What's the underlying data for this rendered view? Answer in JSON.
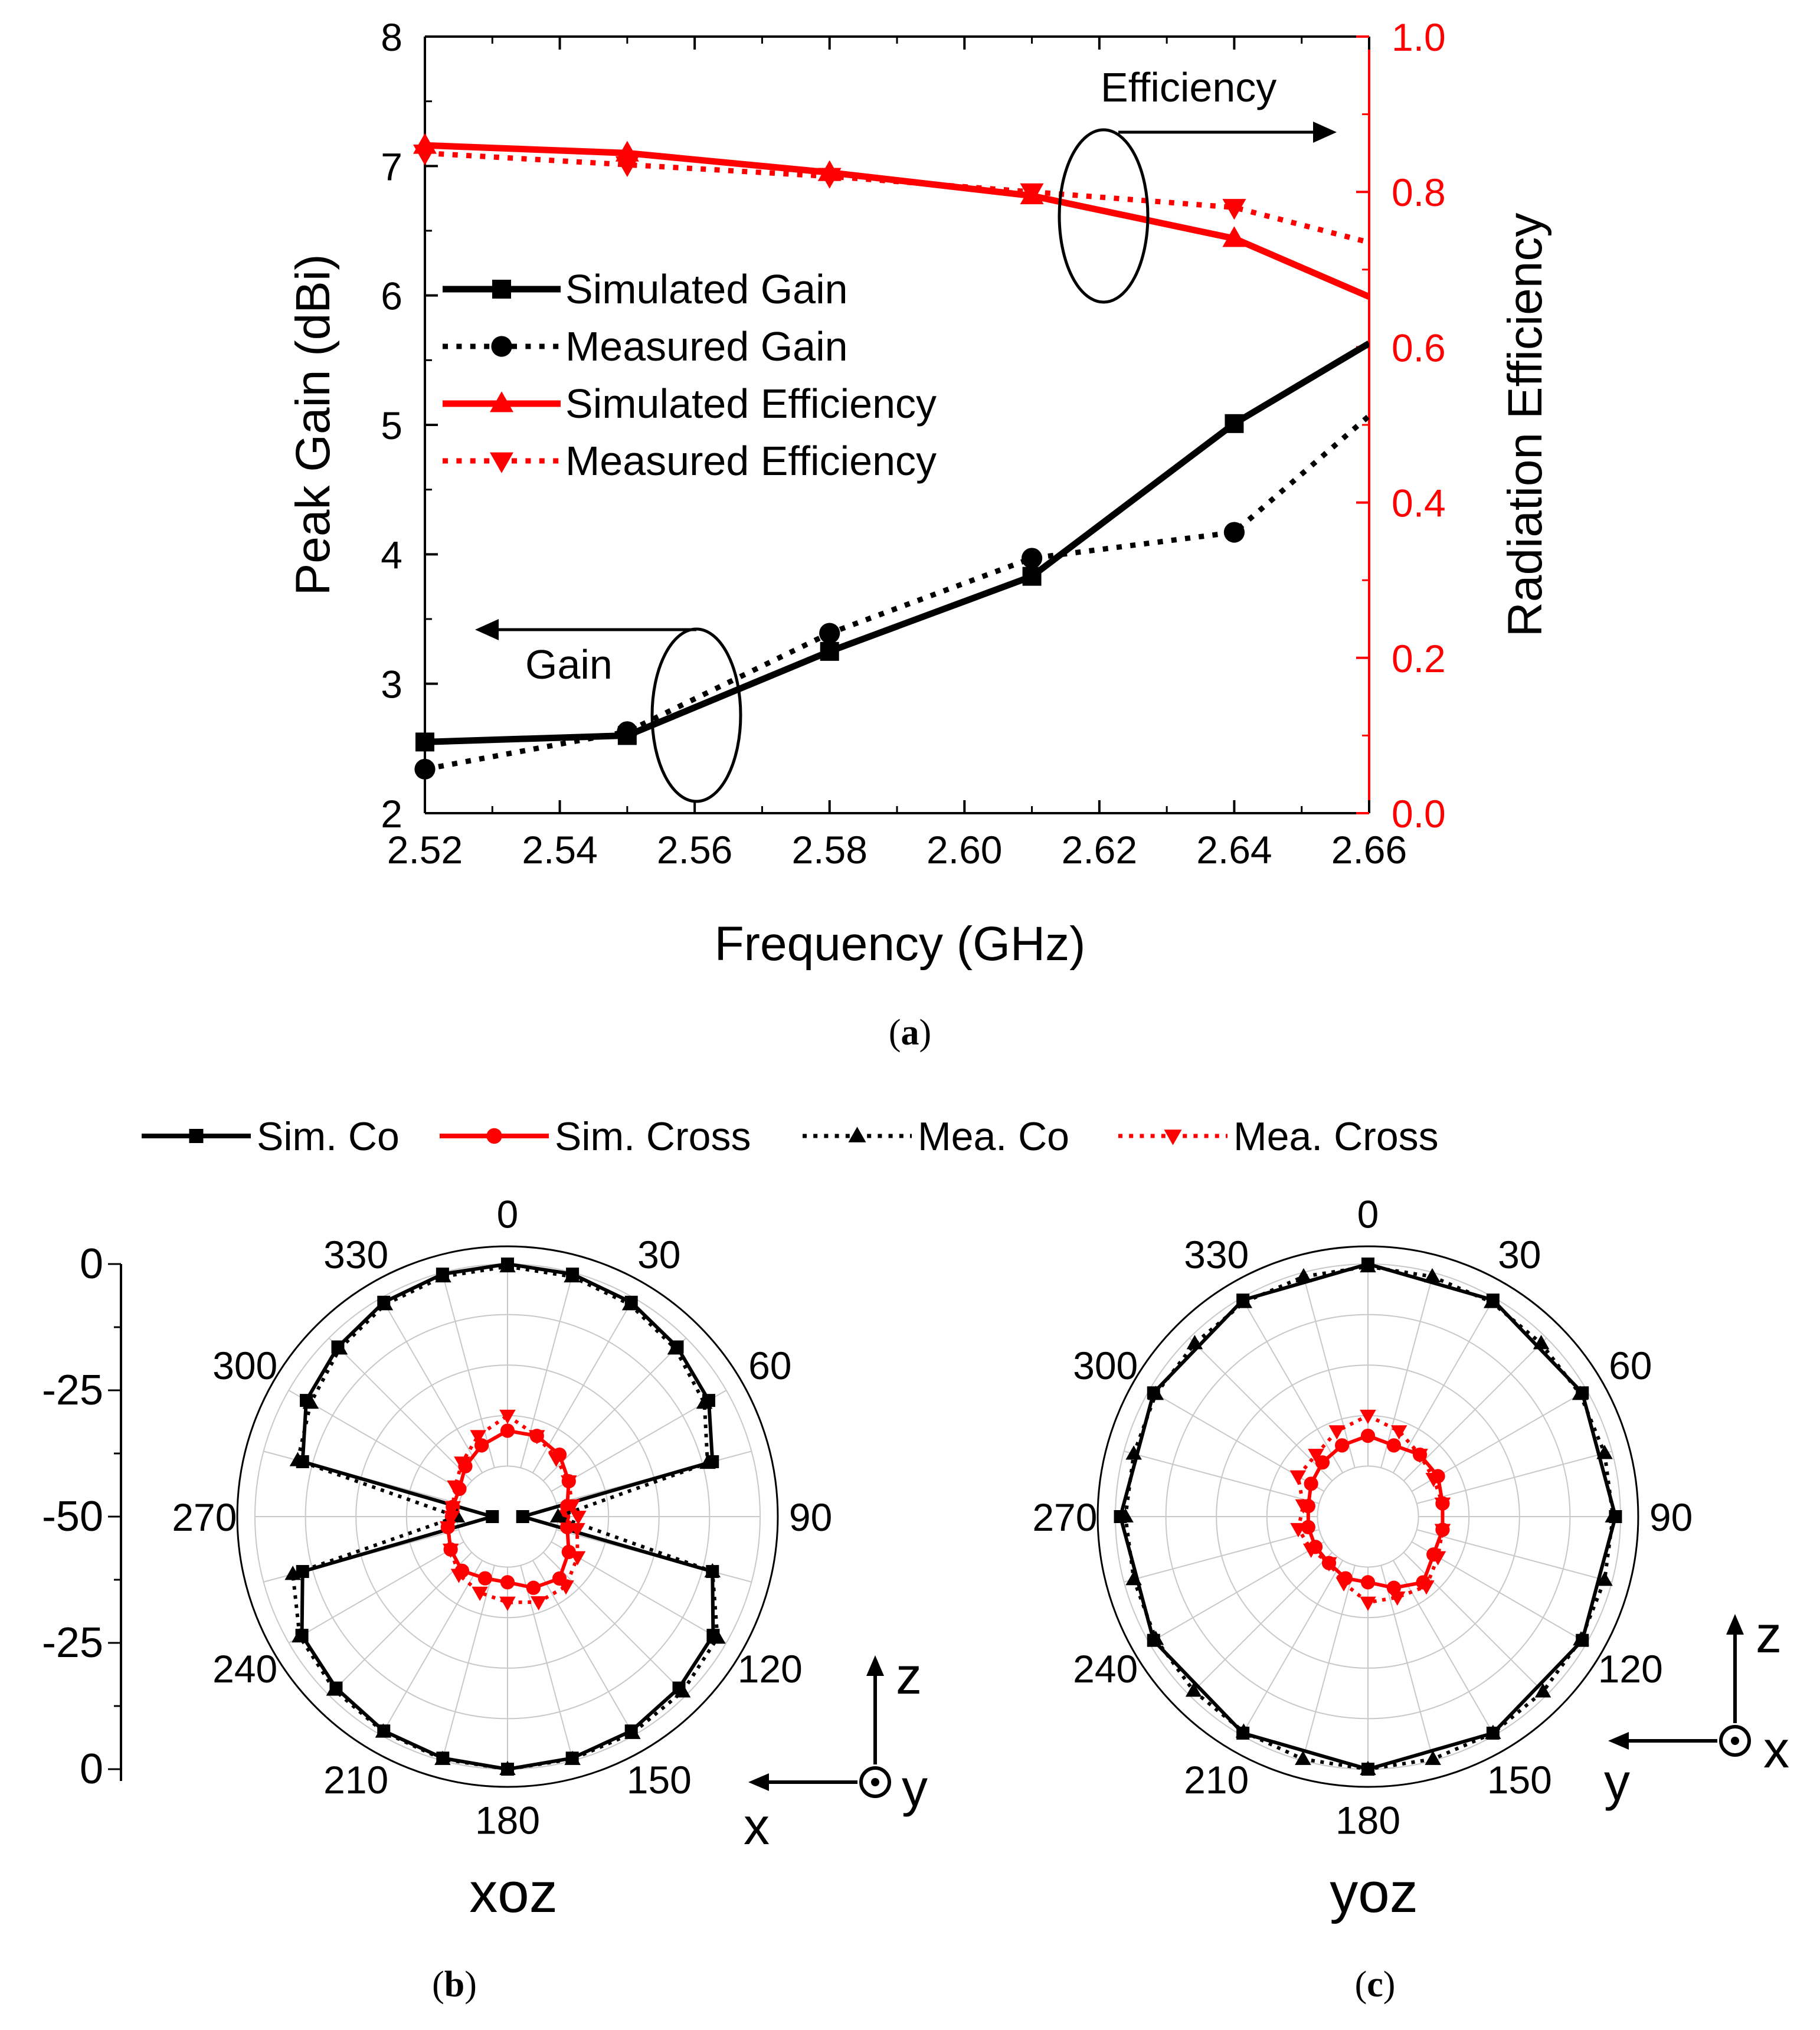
{
  "colors": {
    "black": "#000000",
    "red": "#ff0000",
    "grid": "#c8c8c8"
  },
  "panels": {
    "a": {
      "caption_open": "(",
      "caption_letter": "a",
      "caption_close": ")"
    },
    "b": {
      "caption_open": "(",
      "caption_letter": "b",
      "caption_close": ")"
    },
    "c": {
      "caption_open": "(",
      "caption_letter": "c",
      "caption_close": ")"
    }
  },
  "chart_data": [
    {
      "id": "a",
      "type": "line",
      "xlabel": "Frequency (GHz)",
      "ylabel": "Peak Gain (dBi)",
      "y2label": "Radiation Efficiency",
      "xlim": [
        2.52,
        2.66
      ],
      "ylim": [
        2,
        8
      ],
      "y2lim": [
        0.0,
        1.0
      ],
      "xticks": [
        "2.52",
        "2.54",
        "2.56",
        "2.58",
        "2.60",
        "2.62",
        "2.64",
        "2.66"
      ],
      "yticks": [
        "2",
        "3",
        "4",
        "5",
        "6",
        "7",
        "8"
      ],
      "y2ticks": [
        "0.0",
        "0.2",
        "0.4",
        "0.6",
        "0.8",
        "1.0"
      ],
      "legend_position": "center-left",
      "series": [
        {
          "name": "Simulated  Gain",
          "axis": "left",
          "color": "#000000",
          "style": "solid",
          "marker": "square",
          "x": [
            2.52,
            2.55,
            2.58,
            2.61,
            2.64,
            2.66
          ],
          "y": [
            2.55,
            2.6,
            3.25,
            3.83,
            5.01,
            5.63
          ]
        },
        {
          "name": "Measured Gain",
          "axis": "left",
          "color": "#000000",
          "style": "dotted",
          "marker": "circle",
          "x": [
            2.52,
            2.55,
            2.58,
            2.61,
            2.64,
            2.66
          ],
          "y": [
            2.34,
            2.63,
            3.39,
            3.97,
            4.17,
            5.07
          ]
        },
        {
          "name": "Simulated Efficiency",
          "axis": "right",
          "color": "#ff0000",
          "style": "solid",
          "marker": "triangle-up",
          "x": [
            2.52,
            2.55,
            2.58,
            2.61,
            2.64,
            2.66
          ],
          "y": [
            0.86,
            0.85,
            0.825,
            0.795,
            0.74,
            0.665
          ]
        },
        {
          "name": "Measured Efficiency",
          "axis": "right",
          "color": "#ff0000",
          "style": "dotted",
          "marker": "triangle-down",
          "x": [
            2.52,
            2.55,
            2.58,
            2.61,
            2.64,
            2.66
          ],
          "y": [
            0.85,
            0.835,
            0.82,
            0.8,
            0.78,
            0.735
          ]
        }
      ],
      "annotations": {
        "efficiency_label": "Efficiency",
        "gain_label": "Gain"
      }
    },
    {
      "id": "b",
      "type": "polar",
      "plane_label": "xoz",
      "radial_ticks": [
        "0",
        "-25",
        "-50",
        "-25",
        "0"
      ],
      "angle_labels": [
        "0",
        "30",
        "60",
        "90",
        "120",
        "150",
        "180",
        "210",
        "240",
        "270",
        "300",
        "330"
      ],
      "r_range_db": [
        -50,
        0
      ],
      "axis_labels": {
        "up": "z",
        "left": "x",
        "out": "y"
      },
      "series": [
        {
          "name": "Sim. Co",
          "color": "#000000",
          "style": "solid",
          "marker": "square",
          "angles": [
            0,
            15,
            30,
            45,
            60,
            75,
            90,
            105,
            120,
            135,
            150,
            165,
            180,
            195,
            210,
            225,
            240,
            255,
            270,
            285,
            300,
            315,
            330,
            345
          ],
          "values": [
            0,
            -0.3,
            -1,
            -2.5,
            -4,
            -8,
            -47,
            -8,
            -3,
            -2,
            -1,
            -0.5,
            0,
            -0.5,
            -1,
            -2,
            -3,
            -8,
            -47,
            -8,
            -4,
            -2.5,
            -1,
            -0.3
          ]
        },
        {
          "name": "Sim. Cross",
          "color": "#ff0000",
          "style": "solid",
          "marker": "circle",
          "angles": [
            0,
            20,
            40,
            60,
            80,
            90,
            100,
            120,
            140,
            160,
            180,
            200,
            220,
            240,
            260,
            270,
            280,
            300,
            320,
            340
          ],
          "values": [
            -33,
            -33,
            -34,
            -36,
            -38,
            -39,
            -38,
            -36,
            -34,
            -35,
            -37,
            -37,
            -36,
            -37,
            -38,
            -39,
            -39,
            -39,
            -37,
            -35
          ]
        },
        {
          "name": "Mea. Co",
          "color": "#000000",
          "style": "dotted",
          "marker": "triangle-up",
          "angles": [
            0,
            15,
            30,
            45,
            60,
            75,
            90,
            105,
            120,
            135,
            150,
            165,
            180,
            195,
            210,
            225,
            240,
            255,
            270,
            285,
            300,
            315,
            330,
            345
          ],
          "values": [
            -0.5,
            -0.8,
            -1.5,
            -3,
            -5,
            -9,
            -40,
            -8,
            -2,
            -1,
            -0.5,
            -0.3,
            0,
            -0.3,
            -0.8,
            -1.5,
            -2.5,
            -6,
            -40,
            -7,
            -5,
            -3,
            -1.5,
            -0.8
          ]
        },
        {
          "name": "Mea. Cross",
          "color": "#ff0000",
          "style": "dotted",
          "marker": "triangle-down",
          "angles": [
            0,
            20,
            40,
            60,
            80,
            90,
            100,
            120,
            140,
            160,
            180,
            200,
            220,
            240,
            260,
            270,
            280,
            300,
            320,
            340
          ],
          "values": [
            -30,
            -33,
            -35,
            -36,
            -37,
            -36,
            -36,
            -34,
            -32,
            -32,
            -33,
            -34,
            -35,
            -37,
            -38,
            -39,
            -39,
            -38,
            -36,
            -33
          ]
        }
      ]
    },
    {
      "id": "c",
      "type": "polar",
      "plane_label": "yoz",
      "angle_labels": [
        "0",
        "30",
        "60",
        "90",
        "120",
        "150",
        "180",
        "210",
        "240",
        "270",
        "300",
        "330"
      ],
      "r_range_db": [
        -50,
        0
      ],
      "axis_labels": {
        "up": "z",
        "left": "y",
        "out": "x"
      },
      "series": [
        {
          "name": "Sim. Co",
          "color": "#000000",
          "style": "solid",
          "marker": "square",
          "angles": [
            0,
            30,
            60,
            90,
            120,
            150,
            180,
            210,
            240,
            270,
            300,
            330
          ],
          "values": [
            0,
            -0.5,
            -1,
            -1,
            -1,
            -0.5,
            0,
            -0.5,
            -1,
            -1,
            -1,
            -0.5
          ]
        },
        {
          "name": "Sim. Cross",
          "color": "#ff0000",
          "style": "solid",
          "marker": "circle",
          "angles": [
            0,
            20,
            40,
            60,
            80,
            100,
            120,
            140,
            160,
            180,
            200,
            220,
            240,
            260,
            280,
            300,
            320,
            340
          ],
          "values": [
            -34,
            -35,
            -34,
            -34,
            -35,
            -35,
            -35,
            -33,
            -35,
            -37,
            -37,
            -38,
            -38,
            -38,
            -38,
            -37,
            -36,
            -35
          ]
        },
        {
          "name": "Mea. Co",
          "color": "#000000",
          "style": "dotted",
          "marker": "triangle-up",
          "angles": [
            0,
            15,
            30,
            45,
            60,
            75,
            90,
            105,
            120,
            135,
            150,
            165,
            180,
            195,
            210,
            225,
            240,
            255,
            270,
            285,
            300,
            315,
            330,
            345
          ],
          "values": [
            -0.5,
            -0.8,
            -1,
            -1.5,
            -1.5,
            -1.5,
            -1.5,
            -1.5,
            -1.3,
            -1,
            -0.5,
            -0.3,
            0,
            -0.3,
            -0.8,
            -1.2,
            -1.5,
            -2,
            -2,
            -2,
            -1.5,
            -1.5,
            -1,
            -0.8
          ]
        },
        {
          "name": "Mea. Cross",
          "color": "#ff0000",
          "style": "dotted",
          "marker": "triangle-down",
          "angles": [
            0,
            20,
            40,
            60,
            80,
            100,
            120,
            140,
            160,
            180,
            200,
            220,
            240,
            260,
            280,
            300,
            320,
            340
          ],
          "values": [
            -30,
            -32,
            -34,
            -35,
            -35,
            -35,
            -34,
            -32,
            -33,
            -33,
            -36,
            -38,
            -37,
            -36,
            -37,
            -34,
            -34,
            -32
          ]
        }
      ]
    }
  ],
  "polar_legend": [
    "Sim. Co",
    "Sim. Cross",
    "Mea. Co",
    "Mea. Cross"
  ],
  "polar_legend_styles": [
    {
      "color": "#000000",
      "style": "solid",
      "marker": "square"
    },
    {
      "color": "#ff0000",
      "style": "solid",
      "marker": "circle"
    },
    {
      "color": "#000000",
      "style": "dotted",
      "marker": "triangle-up"
    },
    {
      "color": "#ff0000",
      "style": "dotted",
      "marker": "triangle-down"
    }
  ]
}
